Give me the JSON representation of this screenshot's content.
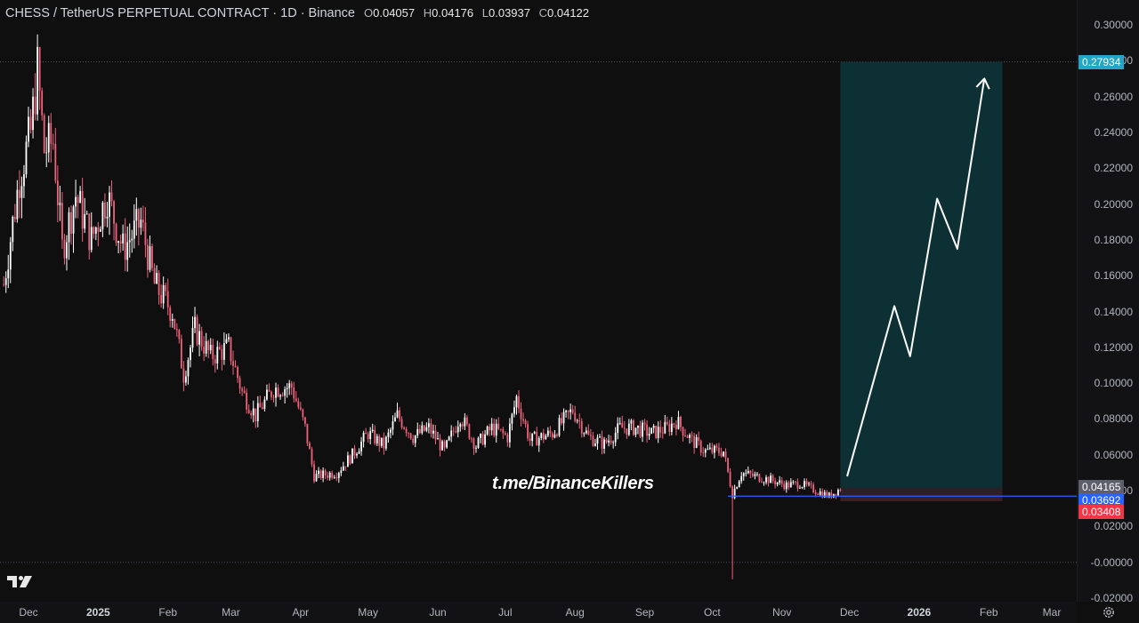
{
  "header": {
    "title": "CHESS / TetherUS PERPETUAL CONTRACT · 1D · Binance",
    "open_label": "O",
    "open": "0.04057",
    "high_label": "H",
    "high": "0.04176",
    "low_label": "L",
    "low": "0.03937",
    "close_label": "C",
    "close": "0.04122"
  },
  "watermark": "t.me/BinanceKillers",
  "price_tags": {
    "target": "0.27934",
    "current": "0.04165",
    "entry": "0.03692",
    "stop": "0.03408"
  },
  "colors": {
    "background": "#0f0f10",
    "up": "#ffffff",
    "down": "#f0627a",
    "target_zone": "#0d3035",
    "stop_zone": "#3a1f26",
    "entry_line": "#2962ff",
    "target_tag": "#22a7c4",
    "stop_tag": "#f23645",
    "current_tag": "#5d606b"
  },
  "chart_data": {
    "type": "candlestick",
    "symbol": "CHESS / TetherUS PERPETUAL CONTRACT",
    "interval": "1D",
    "exchange": "Binance",
    "ylim": [
      -0.02,
      0.3
    ],
    "y_ticks": [
      "0.30000",
      "0.28000",
      "0.26000",
      "0.24000",
      "0.22000",
      "0.20000",
      "0.18000",
      "0.16000",
      "0.14000",
      "0.12000",
      "0.10000",
      "0.08000",
      "0.06000",
      "0.04000",
      "0.02000",
      "-0.00000",
      "-0.02000"
    ],
    "x_ticks": [
      "Dec",
      "2025",
      "Feb",
      "Mar",
      "Apr",
      "May",
      "Jun",
      "Jul",
      "Aug",
      "Sep",
      "Oct",
      "Nov",
      "Dec",
      "2026",
      "Feb",
      "Mar"
    ],
    "x_tick_year_flags": [
      false,
      true,
      false,
      false,
      false,
      false,
      false,
      false,
      false,
      false,
      false,
      false,
      false,
      true,
      false,
      false
    ],
    "close_path": [
      {
        "date": "2024-11-20",
        "price": 0.155
      },
      {
        "date": "2024-11-27",
        "price": 0.215
      },
      {
        "date": "2024-12-02",
        "price": 0.24
      },
      {
        "date": "2024-12-05",
        "price": 0.275
      },
      {
        "date": "2024-12-08",
        "price": 0.23
      },
      {
        "date": "2024-12-12",
        "price": 0.235
      },
      {
        "date": "2024-12-16",
        "price": 0.175
      },
      {
        "date": "2024-12-22",
        "price": 0.205
      },
      {
        "date": "2024-12-29",
        "price": 0.18
      },
      {
        "date": "2025-01-05",
        "price": 0.205
      },
      {
        "date": "2025-01-12",
        "price": 0.175
      },
      {
        "date": "2025-01-20",
        "price": 0.19
      },
      {
        "date": "2025-01-26",
        "price": 0.155
      },
      {
        "date": "2025-02-03",
        "price": 0.14
      },
      {
        "date": "2025-02-08",
        "price": 0.105
      },
      {
        "date": "2025-02-13",
        "price": 0.13
      },
      {
        "date": "2025-02-20",
        "price": 0.115
      },
      {
        "date": "2025-02-28",
        "price": 0.12
      },
      {
        "date": "2025-03-06",
        "price": 0.095
      },
      {
        "date": "2025-03-12",
        "price": 0.082
      },
      {
        "date": "2025-03-20",
        "price": 0.097
      },
      {
        "date": "2025-03-28",
        "price": 0.098
      },
      {
        "date": "2025-04-03",
        "price": 0.075
      },
      {
        "date": "2025-04-07",
        "price": 0.048
      },
      {
        "date": "2025-04-17",
        "price": 0.05
      },
      {
        "date": "2025-04-24",
        "price": 0.06
      },
      {
        "date": "2025-05-01",
        "price": 0.072
      },
      {
        "date": "2025-05-08",
        "price": 0.065
      },
      {
        "date": "2025-05-14",
        "price": 0.082
      },
      {
        "date": "2025-05-21",
        "price": 0.07
      },
      {
        "date": "2025-05-28",
        "price": 0.075
      },
      {
        "date": "2025-06-04",
        "price": 0.062
      },
      {
        "date": "2025-06-11",
        "price": 0.082
      },
      {
        "date": "2025-06-18",
        "price": 0.065
      },
      {
        "date": "2025-06-25",
        "price": 0.075
      },
      {
        "date": "2025-07-02",
        "price": 0.07
      },
      {
        "date": "2025-07-06",
        "price": 0.092
      },
      {
        "date": "2025-07-12",
        "price": 0.068
      },
      {
        "date": "2025-07-22",
        "price": 0.072
      },
      {
        "date": "2025-07-31",
        "price": 0.085
      },
      {
        "date": "2025-08-07",
        "price": 0.07
      },
      {
        "date": "2025-08-14",
        "price": 0.066
      },
      {
        "date": "2025-08-21",
        "price": 0.075
      },
      {
        "date": "2025-08-28",
        "price": 0.075
      },
      {
        "date": "2025-09-04",
        "price": 0.072
      },
      {
        "date": "2025-09-11",
        "price": 0.075
      },
      {
        "date": "2025-09-15",
        "price": 0.079
      },
      {
        "date": "2025-09-22",
        "price": 0.068
      },
      {
        "date": "2025-09-28",
        "price": 0.062
      },
      {
        "date": "2025-10-06",
        "price": 0.062
      },
      {
        "date": "2025-10-10",
        "price": 0.038
      },
      {
        "date": "2025-10-14",
        "price": 0.05
      },
      {
        "date": "2025-10-20",
        "price": 0.048
      },
      {
        "date": "2025-10-27",
        "price": 0.046
      },
      {
        "date": "2025-11-03",
        "price": 0.043
      },
      {
        "date": "2025-11-09",
        "price": 0.044
      },
      {
        "date": "2025-11-16",
        "price": 0.04
      },
      {
        "date": "2025-11-22",
        "price": 0.037
      },
      {
        "date": "2025-11-27",
        "price": 0.0412
      }
    ],
    "spikes": [
      {
        "date": "2024-12-06",
        "high": 0.2793
      },
      {
        "date": "2025-10-10",
        "low": -0.0095
      }
    ],
    "position": {
      "start_date": "2025-11-27",
      "end_date": "2026-02-07",
      "entry": 0.03692,
      "target": 0.27934,
      "stop": 0.03408
    },
    "projection_path": [
      {
        "date": "2025-11-30",
        "price": 0.048
      },
      {
        "date": "2025-12-21",
        "price": 0.143
      },
      {
        "date": "2025-12-28",
        "price": 0.115
      },
      {
        "date": "2026-01-09",
        "price": 0.203
      },
      {
        "date": "2026-01-18",
        "price": 0.175
      },
      {
        "date": "2026-01-30",
        "price": 0.27
      }
    ],
    "grid": false
  }
}
